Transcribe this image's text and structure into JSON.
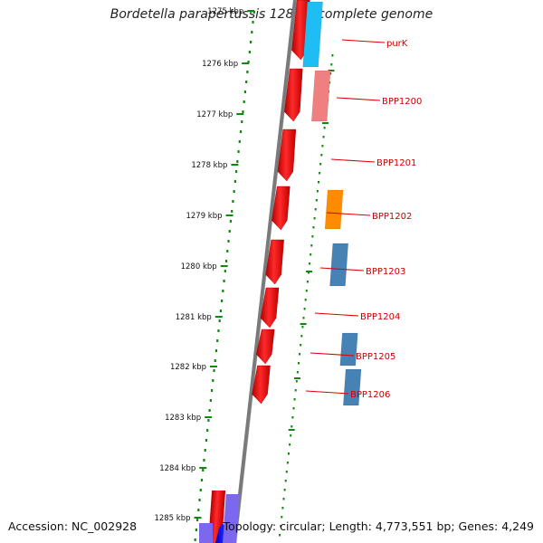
{
  "title": "Bordetella parapertussis 12822, complete genome",
  "footer": {
    "accession": "Accession: NC_002928",
    "summary": "Topology: circular; Length: 4,773,551 bp; Genes: 4,249"
  },
  "ruler_labels": [
    "1275 kbp",
    "1276 kbp",
    "1277 kbp",
    "1278 kbp",
    "1279 kbp",
    "1280 kbp",
    "1281 kbp",
    "1282 kbp",
    "1283 kbp",
    "1284 kbp",
    "1285 kbp"
  ],
  "genes": [
    {
      "name": "purK",
      "color": "#1ebef5"
    },
    {
      "name": "BPP1200",
      "color": "#f08080"
    },
    {
      "name": "BPP1201",
      "color": "#ee1111"
    },
    {
      "name": "BPP1202",
      "color": "#ff8c00"
    },
    {
      "name": "BPP1203",
      "color": "#4682b4"
    },
    {
      "name": "BPP1204",
      "color": "#ee1111"
    },
    {
      "name": "BPP1205",
      "color": "#4682b4"
    },
    {
      "name": "BPP1206",
      "color": "#4682b4"
    }
  ],
  "colors": {
    "backbone": "#7a7a7a",
    "ruler_dots": "#118811",
    "cds": "#ee1111",
    "label_line": "#dd0000",
    "label_text": "#cc0000"
  }
}
